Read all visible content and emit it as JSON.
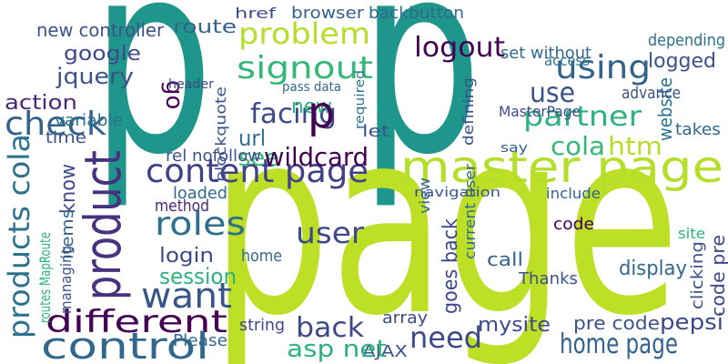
{
  "words": [
    {
      "text": "p",
      "color": "#1f968b"
    },
    {
      "text": "p",
      "color": "#1f968b"
    },
    {
      "text": "page",
      "color": "#bddf26"
    },
    {
      "text": "master page",
      "color": "#b5de2b"
    },
    {
      "text": "product",
      "color": "#46327e"
    },
    {
      "text": "content page",
      "color": "#424086"
    },
    {
      "text": "different",
      "color": "#440154"
    },
    {
      "text": "control",
      "color": "#31688e"
    },
    {
      "text": "want",
      "color": "#39568c"
    },
    {
      "text": "roles",
      "color": "#2e6e8e"
    },
    {
      "text": "products cola",
      "color": "#2c728e"
    },
    {
      "text": "check",
      "color": "#33638d"
    },
    {
      "text": "action",
      "color": "#482878"
    },
    {
      "text": "jquery",
      "color": "#3b528b"
    },
    {
      "text": "google",
      "color": "#3e4989"
    },
    {
      "text": "new controller",
      "color": "#3b528b"
    },
    {
      "text": "route",
      "color": "#33638d"
    },
    {
      "text": "problem",
      "color": "#b5de2b"
    },
    {
      "text": "signout",
      "color": "#35b779"
    },
    {
      "text": "facing",
      "color": "#3e4989"
    },
    {
      "text": "url",
      "color": "#2c728e"
    },
    {
      "text": "see",
      "color": "#35b779"
    },
    {
      "text": "new",
      "color": "#2db27d"
    },
    {
      "text": "p",
      "color": "#440154"
    },
    {
      "text": "go",
      "color": "#440154"
    },
    {
      "text": "blockquote",
      "color": "#3b528b"
    },
    {
      "text": "href",
      "color": "#3e4989"
    },
    {
      "text": "browser",
      "color": "#33638d"
    },
    {
      "text": "backbutton",
      "color": "#31688e"
    },
    {
      "text": "logout",
      "color": "#440154"
    },
    {
      "text": "logged",
      "color": "#3b528b"
    },
    {
      "text": "depending",
      "color": "#2c728e"
    },
    {
      "text": "using",
      "color": "#33638d"
    },
    {
      "text": "use",
      "color": "#3b528b"
    },
    {
      "text": "partner",
      "color": "#2db27d"
    },
    {
      "text": "set without",
      "color": "#31688e"
    },
    {
      "text": "access",
      "color": "#2c728e"
    },
    {
      "text": "MasterPage",
      "color": "#3e4989"
    },
    {
      "text": "cola",
      "color": "#35b779"
    },
    {
      "text": "htm",
      "color": "#b5de2b"
    },
    {
      "text": "website",
      "color": "#2c728e"
    },
    {
      "text": "advance",
      "color": "#3b528b"
    },
    {
      "text": "takes",
      "color": "#31688e"
    },
    {
      "text": "code pre",
      "color": "#3e4989"
    },
    {
      "text": "site",
      "color": "#2db27d"
    },
    {
      "text": "clicking",
      "color": "#3b528b"
    },
    {
      "text": "pepsi",
      "color": "#3e4989"
    },
    {
      "text": "display",
      "color": "#31688e"
    },
    {
      "text": "home page",
      "color": "#33638d"
    },
    {
      "text": "pre code",
      "color": "#3b528b"
    },
    {
      "text": "mysite",
      "color": "#3e4989"
    },
    {
      "text": "need",
      "color": "#3e4989"
    },
    {
      "text": "AJAX",
      "color": "#3b528b"
    },
    {
      "text": "back",
      "color": "#3e4989"
    },
    {
      "text": "asp net",
      "color": "#2db27d"
    },
    {
      "text": "goes back",
      "color": "#3e4989"
    },
    {
      "text": "user",
      "color": "#3e4989"
    },
    {
      "text": "wildcard",
      "color": "#440154"
    },
    {
      "text": "rel nofollow",
      "color": "#3b528b"
    },
    {
      "text": "session",
      "color": "#2db27d"
    },
    {
      "text": "login",
      "color": "#3e4989"
    },
    {
      "text": "method",
      "color": "#482878"
    },
    {
      "text": "loaded",
      "color": "#31688e"
    },
    {
      "text": "time",
      "color": "#3b528b"
    },
    {
      "text": "variable",
      "color": "#2c728e"
    },
    {
      "text": "know",
      "color": "#3e4989"
    },
    {
      "text": "routes MapRoute",
      "color": "#2db27d"
    },
    {
      "text": "items",
      "color": "#33638d"
    },
    {
      "text": "managing",
      "color": "#3b528b"
    },
    {
      "text": "Please",
      "color": "#31688e"
    },
    {
      "text": "string",
      "color": "#3e4989"
    },
    {
      "text": "home",
      "color": "#31688e"
    },
    {
      "text": "view",
      "color": "#31688e"
    },
    {
      "text": "navigation",
      "color": "#3b528b"
    },
    {
      "text": "include",
      "color": "#33638d"
    },
    {
      "text": "call",
      "color": "#33638d"
    },
    {
      "text": "code",
      "color": "#440154"
    },
    {
      "text": "Thanks",
      "color": "#3b528b"
    },
    {
      "text": "array",
      "color": "#3e4989"
    },
    {
      "text": "current user",
      "color": "#31688e"
    },
    {
      "text": "defining",
      "color": "#3b528b"
    },
    {
      "text": "required",
      "color": "#2c728e"
    },
    {
      "text": "let",
      "color": "#3b528b"
    },
    {
      "text": "pass data",
      "color": "#31688e"
    },
    {
      "text": "say",
      "color": "#33638d"
    },
    {
      "text": "header",
      "color": "#3e4989"
    }
  ]
}
